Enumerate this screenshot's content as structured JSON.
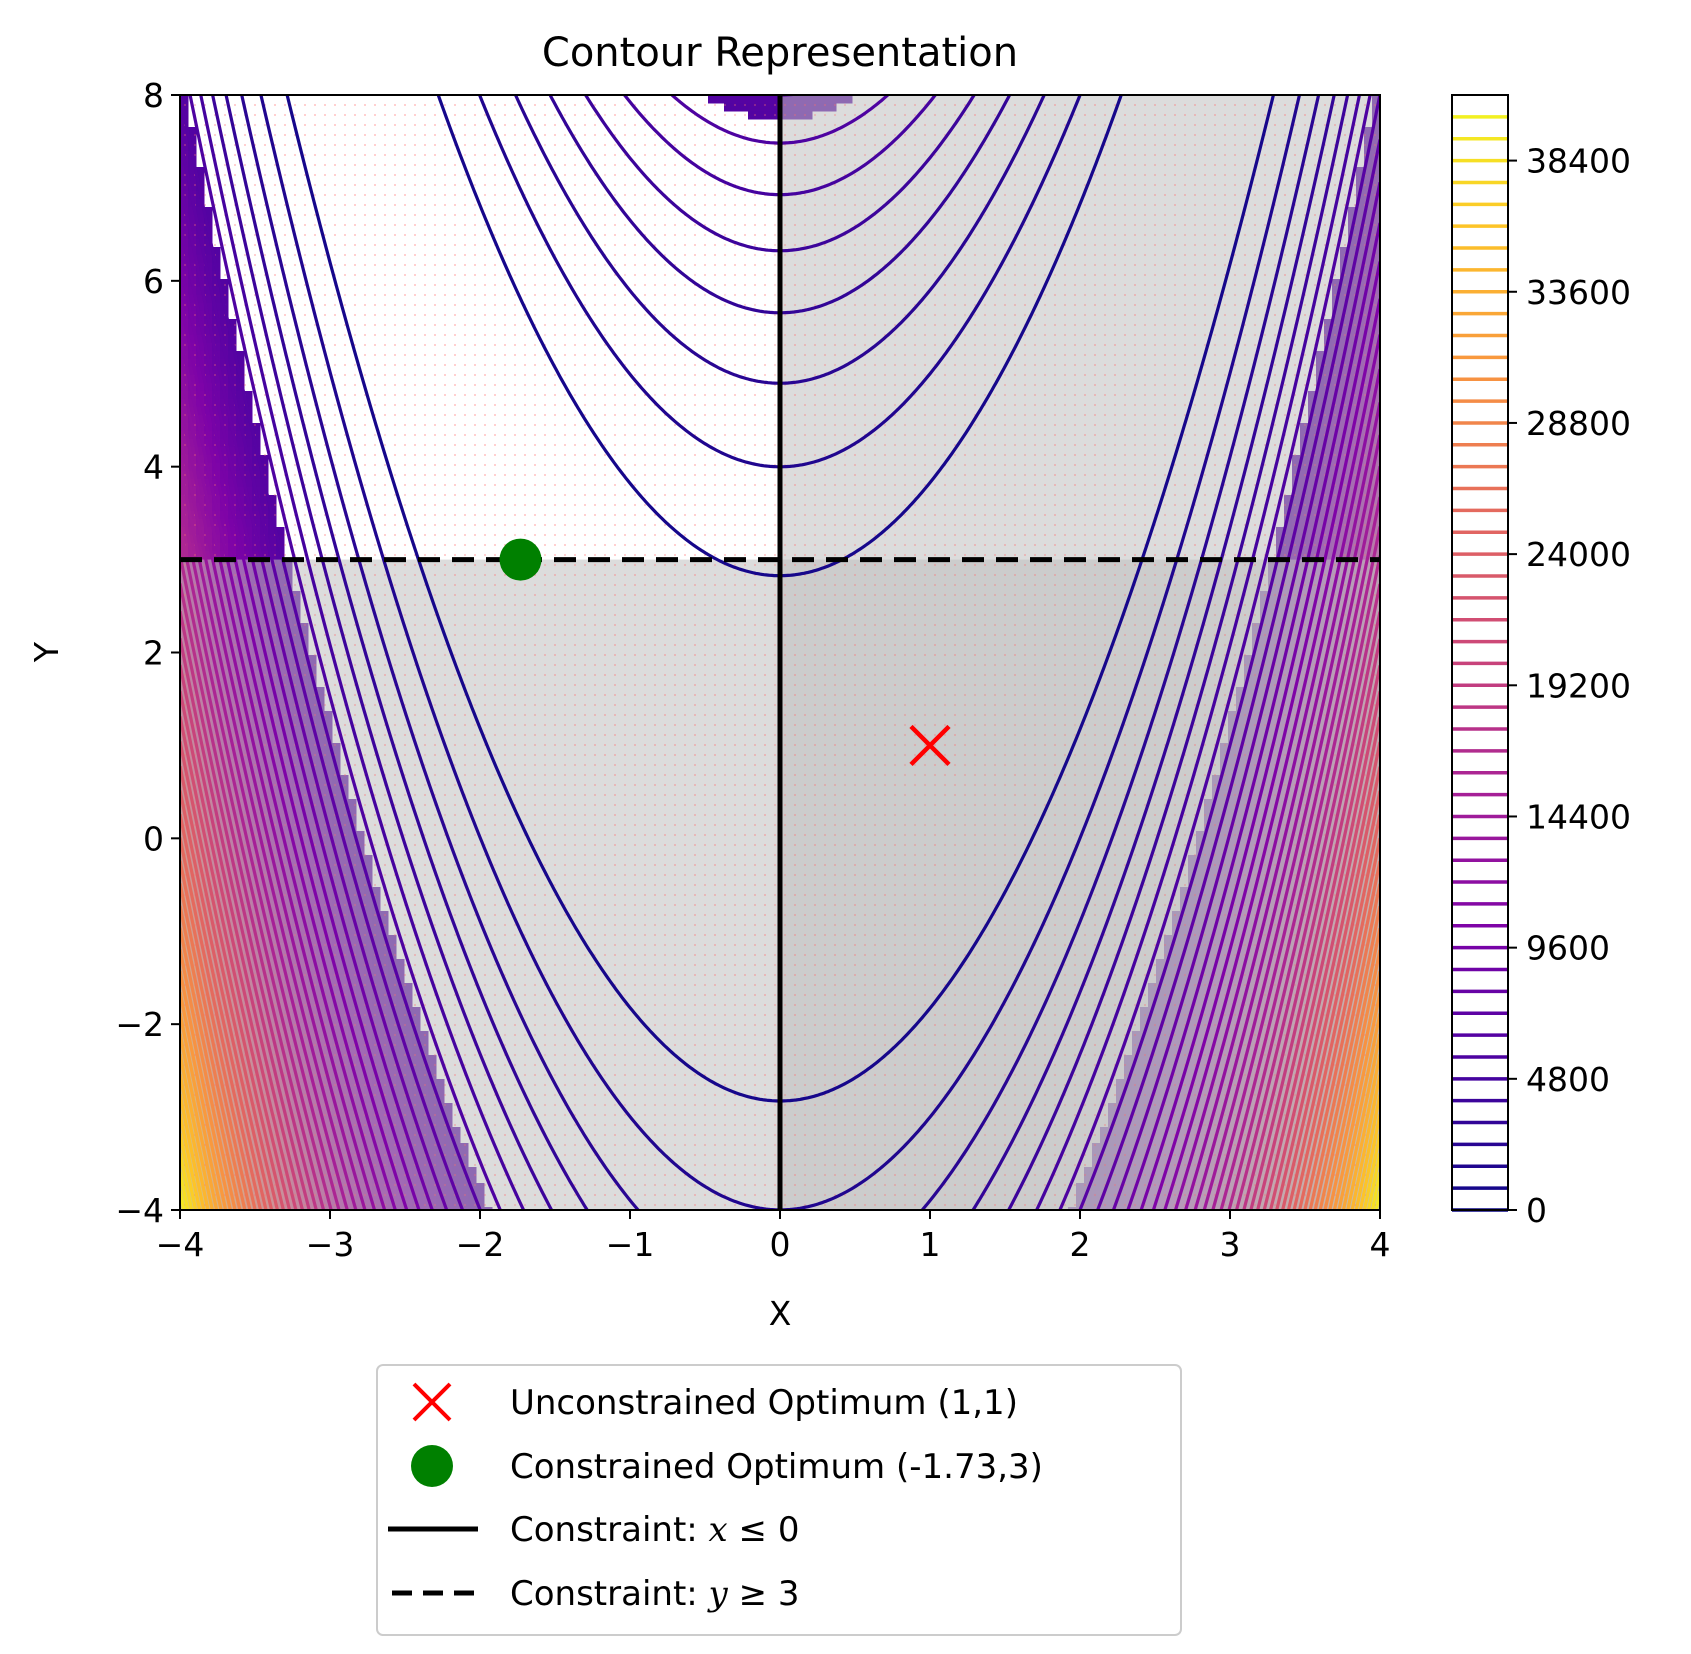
{
  "chart_data": {
    "type": "contour",
    "title": "Contour Representation",
    "xlabel": "X",
    "ylabel": "Y",
    "xlim": [
      -4,
      4
    ],
    "ylim": [
      -4,
      8
    ],
    "x_ticks": [
      "−4",
      "−3",
      "−2",
      "−1",
      "0",
      "1",
      "2",
      "3",
      "4"
    ],
    "x_tick_values": [
      -4,
      -3,
      -2,
      -1,
      0,
      1,
      2,
      3,
      4
    ],
    "y_ticks": [
      "−4",
      "−2",
      "0",
      "2",
      "4",
      "6",
      "8"
    ],
    "y_tick_values": [
      -4,
      -2,
      0,
      2,
      4,
      6,
      8
    ],
    "function": "(1 - x)^2 + 100 (y - x^2)^2",
    "contour_levels": {
      "start": 0,
      "step": 800,
      "end": 40000
    },
    "colormap": "plasma",
    "colorbar": {
      "ticks": [
        "0",
        "4800",
        "9600",
        "14400",
        "19200",
        "24000",
        "28800",
        "33600",
        "38400"
      ],
      "tick_values": [
        0,
        4800,
        9600,
        14400,
        19200,
        24000,
        28800,
        33600,
        38400
      ],
      "range": [
        0,
        40800
      ]
    },
    "constraints": [
      {
        "type": "vertical",
        "x": 0,
        "style": "solid",
        "color": "#000000"
      },
      {
        "type": "horizontal",
        "y": 3,
        "style": "dashed",
        "color": "#000000"
      }
    ],
    "shaded_regions": [
      {
        "region": "x >= 0",
        "color": "#bfbfbf"
      },
      {
        "region": "y <= 3",
        "color": "#bfbfbf"
      }
    ],
    "points": [
      {
        "label": "Unconstrained Optimum (1,1)",
        "x": 1,
        "y": 1,
        "marker": "x",
        "color": "#ff0000"
      },
      {
        "label": "Constrained Optimum (-1.73,3)",
        "x": -1.73,
        "y": 3,
        "marker": "o",
        "color": "#008000"
      }
    ],
    "legend": {
      "placement": "below",
      "entries": [
        {
          "text": "Unconstrained Optimum (1,1)",
          "symbol": "red-x"
        },
        {
          "text": "Constrained Optimum (-1.73,3)",
          "symbol": "green-dot"
        },
        {
          "text_prefix": "Constraint: ",
          "math_var": "x",
          "math_rest": " ≤ 0",
          "symbol": "solid-line"
        },
        {
          "text_prefix": "Constraint: ",
          "math_var": "y",
          "math_rest": " ≥ 3",
          "symbol": "dashed-line"
        }
      ]
    }
  }
}
